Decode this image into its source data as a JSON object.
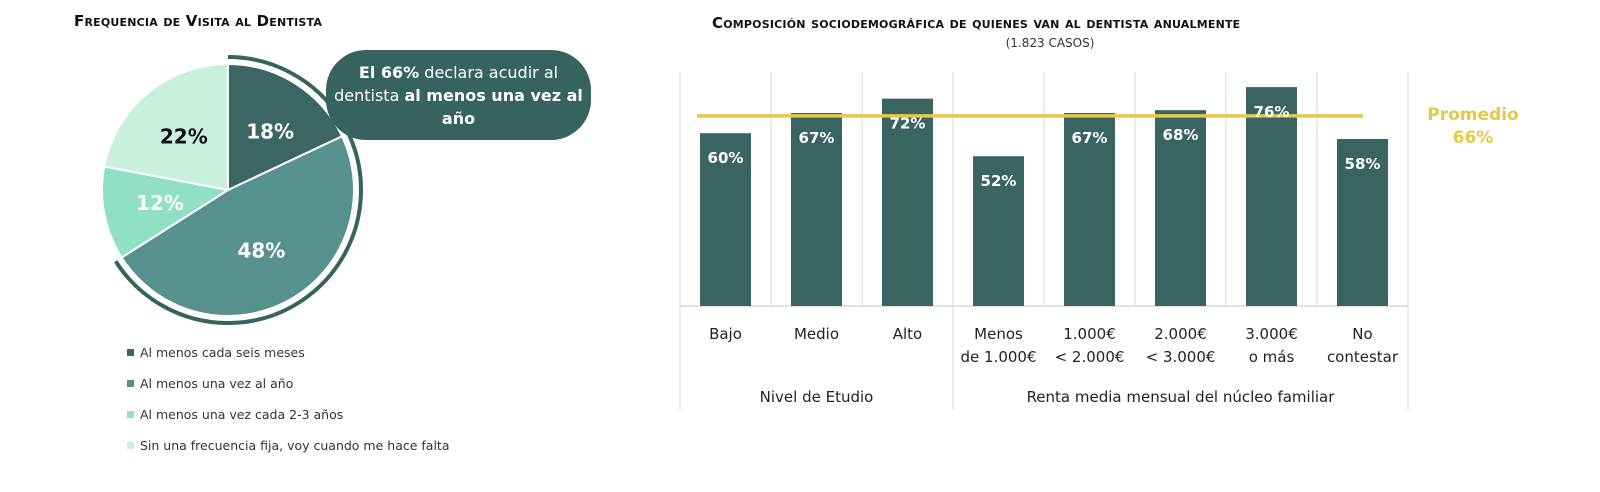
{
  "chart_data": [
    {
      "type": "pie",
      "title": "Frequencia de Visita al Dentista",
      "slices": [
        {
          "label": "Al menos cada seis meses",
          "value": 18,
          "display": "18%",
          "color": "#3c6663",
          "text_color": "#ffffff"
        },
        {
          "label": "Al menos una vez al año",
          "value": 48,
          "display": "48%",
          "color": "#56918d",
          "text_color": "#ffffff"
        },
        {
          "label": "Al menos una vez cada 2-3 años",
          "value": 12,
          "display": "12%",
          "color": "#8fe0c5",
          "text_color": "#ffffff"
        },
        {
          "label": "Sin una frecuencia fija, voy cuando me hace falta",
          "value": 22,
          "display": "22%",
          "color": "#c9f0dc",
          "text_color": "#111111"
        }
      ],
      "highlight_value": 66,
      "callout": {
        "bold1": "El 66%",
        "text1": " declara acudir al dentista ",
        "bold2": "al menos una vez al año"
      }
    },
    {
      "type": "bar",
      "title": "Composición sociodemográfica de quienes van al dentista anualmente",
      "subtitle": "(1.823 CASOS)",
      "categories": [
        [
          "Bajo",
          ""
        ],
        [
          "Medio",
          ""
        ],
        [
          "Alto",
          ""
        ],
        [
          "Menos",
          "de 1.000€"
        ],
        [
          "1.000€",
          "< 2.000€"
        ],
        [
          "2.000€",
          "< 3.000€"
        ],
        [
          "3.000€",
          "o más"
        ],
        [
          "No",
          "contestar"
        ]
      ],
      "values": [
        60,
        67,
        72,
        52,
        67,
        68,
        76,
        58
      ],
      "labels": [
        "60%",
        "67%",
        "72%",
        "52%",
        "67%",
        "68%",
        "76%",
        "58%"
      ],
      "groups": [
        {
          "label": "Nivel de Etudio",
          "count": 3
        },
        {
          "label": "Renta media mensual del núcleo familiar",
          "count": 5
        }
      ],
      "average": {
        "value": 66,
        "label": "Promedio",
        "display": "66%"
      },
      "ylim": [
        0,
        100
      ],
      "bar_color": "#3a6462",
      "average_color": "#e6c84a"
    }
  ]
}
